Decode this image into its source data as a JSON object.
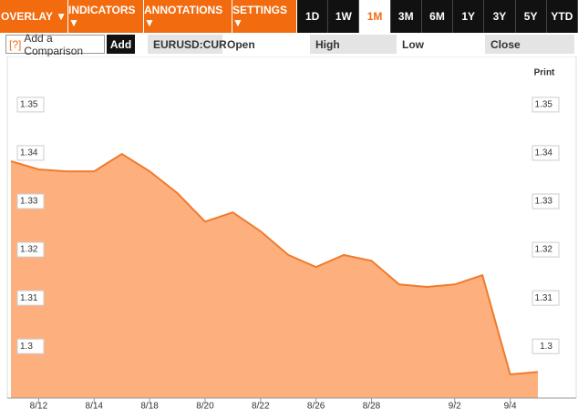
{
  "toolbar": {
    "menus": [
      "OVERLAY ▼",
      "INDICATORS ▼",
      "ANNOTATIONS ▼",
      "SETTINGS ▼"
    ],
    "ranges": [
      "1D",
      "1W",
      "1M",
      "3M",
      "6M",
      "1Y",
      "3Y",
      "5Y",
      "YTD"
    ],
    "selected_range": "1M"
  },
  "comparison": {
    "help": "[?]",
    "placeholder": "Add a Comparison",
    "button": "Add"
  },
  "quote": {
    "symbol": "EURUSD:CUR",
    "fields": [
      "Open",
      "High",
      "Low",
      "Close"
    ]
  },
  "print": "Print",
  "chart_data": {
    "type": "area",
    "color": "#f07b2c",
    "fill": "#fdb07e",
    "categories": [
      null,
      "8/12",
      null,
      "8/14",
      null,
      "8/18",
      null,
      "8/20",
      null,
      "8/22",
      null,
      "8/26",
      null,
      "8/28",
      null,
      null,
      "9/2",
      null,
      "9/4",
      null
    ],
    "values": [
      1.3383,
      1.3366,
      1.3362,
      1.3362,
      1.3398,
      1.3362,
      1.3317,
      1.3258,
      1.3277,
      1.3238,
      1.3189,
      1.3164,
      1.3189,
      1.3177,
      1.3128,
      1.3123,
      1.3128,
      1.3147,
      1.2942,
      1.2947
    ],
    "ylim": [
      1.2893,
      1.3594
    ],
    "yticks": [
      1.3,
      1.31,
      1.32,
      1.33,
      1.34,
      1.35
    ]
  }
}
